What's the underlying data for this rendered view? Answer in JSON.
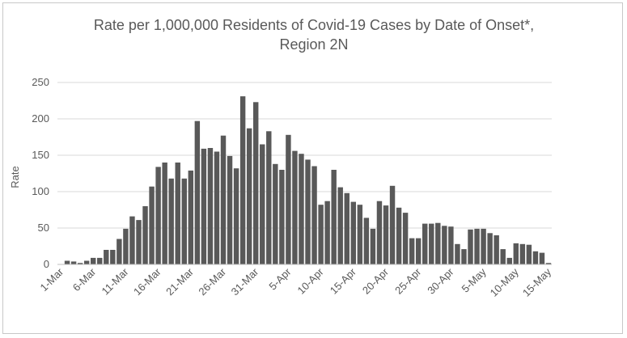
{
  "chart_data": {
    "type": "bar",
    "title_line1": "Rate per 1,000,000 Residents of Covid-19 Cases by Date of Onset*,",
    "title_line2": "Region 2N",
    "xlabel": "",
    "ylabel": "Rate",
    "ylim": [
      0,
      250
    ],
    "yticks": [
      0,
      50,
      100,
      150,
      200,
      250
    ],
    "grid": true,
    "bar_color": "#595959",
    "start_date": "1-Mar",
    "tick_labels": [
      "1-Mar",
      "6-Mar",
      "11-Mar",
      "16-Mar",
      "21-Mar",
      "26-Mar",
      "31-Mar",
      "5-Apr",
      "10-Apr",
      "15-Apr",
      "20-Apr",
      "25-Apr",
      "30-Apr",
      "5-May",
      "10-May",
      "15-May"
    ],
    "values": [
      0,
      5,
      4,
      2,
      5,
      9,
      9,
      20,
      20,
      35,
      49,
      66,
      61,
      80,
      107,
      134,
      140,
      118,
      140,
      118,
      129,
      197,
      159,
      160,
      155,
      177,
      149,
      132,
      231,
      187,
      223,
      165,
      183,
      138,
      130,
      178,
      156,
      152,
      144,
      135,
      82,
      87,
      130,
      106,
      98,
      86,
      82,
      64,
      49,
      87,
      81,
      108,
      78,
      71,
      36,
      36,
      56,
      56,
      57,
      53,
      52,
      28,
      21,
      48,
      49,
      49,
      43,
      40,
      21,
      9,
      29,
      28,
      27,
      18,
      16,
      2
    ]
  }
}
